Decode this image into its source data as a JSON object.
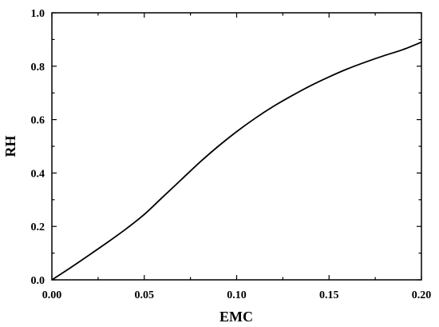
{
  "chart_data": {
    "type": "line",
    "title": "",
    "xlabel": "EMC",
    "ylabel": "RH",
    "xlim": [
      0.0,
      0.2
    ],
    "ylim": [
      0.0,
      1.0
    ],
    "grid": false,
    "legend": "none",
    "xticks": [
      "0.00",
      "0.05",
      "0.10",
      "0.15",
      "0.20"
    ],
    "yticks": [
      "0.0",
      "0.2",
      "0.4",
      "0.6",
      "0.8",
      "1.0"
    ],
    "series": [
      {
        "color": "#000000",
        "x": [
          0.0,
          0.01,
          0.02,
          0.03,
          0.04,
          0.05,
          0.06,
          0.07,
          0.08,
          0.09,
          0.1,
          0.11,
          0.12,
          0.13,
          0.14,
          0.15,
          0.16,
          0.17,
          0.18,
          0.19,
          0.2
        ],
        "y": [
          0.0,
          0.045,
          0.092,
          0.14,
          0.19,
          0.245,
          0.31,
          0.375,
          0.44,
          0.5,
          0.555,
          0.605,
          0.65,
          0.69,
          0.727,
          0.76,
          0.79,
          0.816,
          0.84,
          0.862,
          0.89
        ]
      }
    ]
  }
}
